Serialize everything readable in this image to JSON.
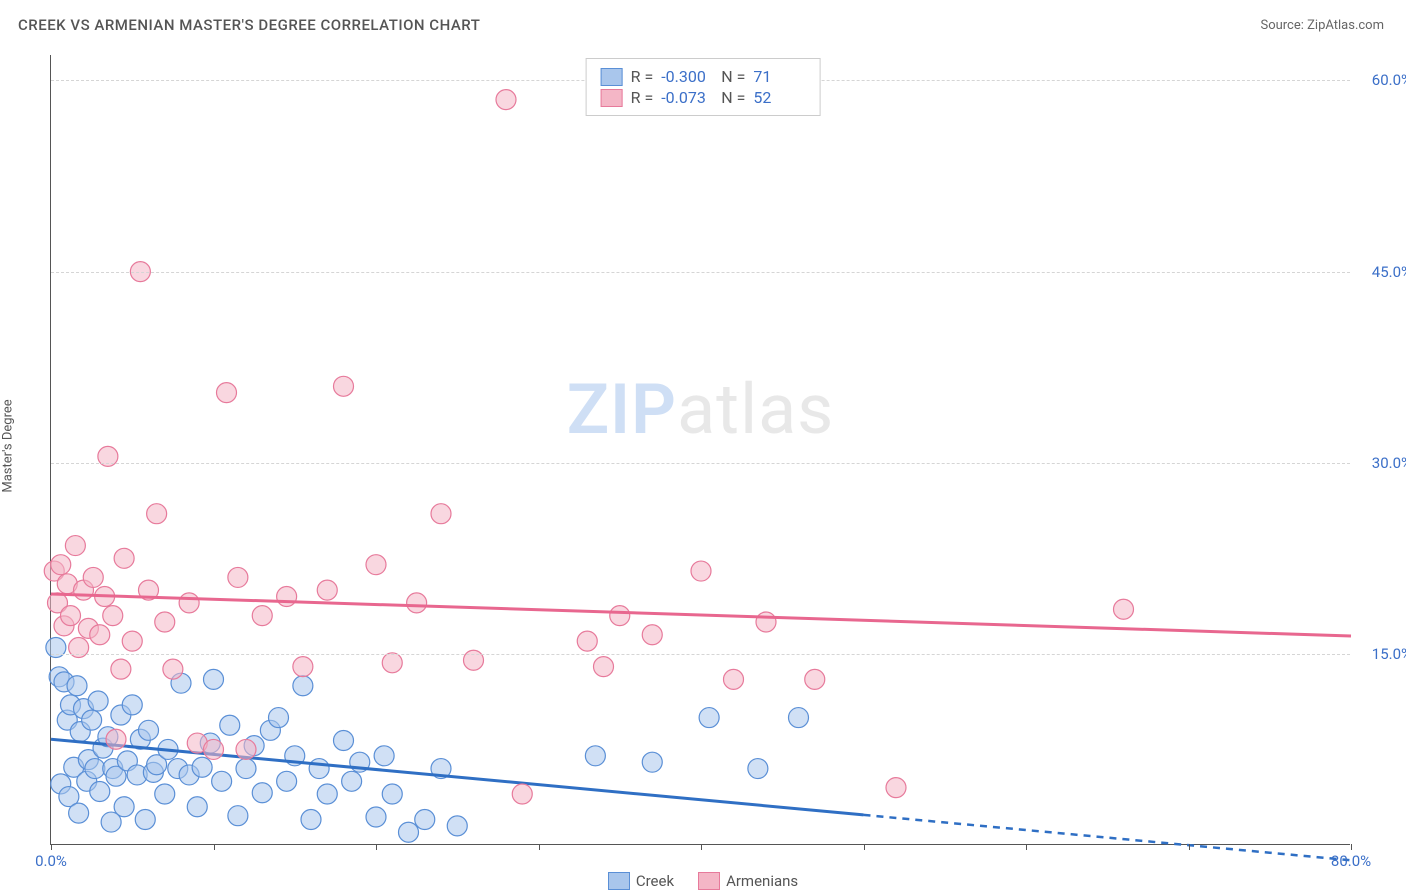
{
  "title": "CREEK VS ARMENIAN MASTER'S DEGREE CORRELATION CHART",
  "source": "Source: ZipAtlas.com",
  "watermark_zip": "ZIP",
  "watermark_rest": "atlas",
  "y_axis_label": "Master's Degree",
  "chart": {
    "type": "scatter",
    "xlim": [
      0,
      80
    ],
    "ylim": [
      0,
      62
    ],
    "x_ticks": [
      0,
      10,
      20,
      30,
      40,
      50,
      60,
      70,
      80
    ],
    "x_tick_labels": {
      "0": "0.0%",
      "80": "80.0%"
    },
    "y_grid": [
      15,
      30,
      45,
      60
    ],
    "y_tick_labels": {
      "15": "15.0%",
      "30": "30.0%",
      "45": "45.0%",
      "60": "60.0%"
    },
    "background_color": "#ffffff",
    "grid_color": "#d5d5d5",
    "tick_label_color": "#3b6fc8",
    "marker_radius": 10,
    "marker_opacity": 0.55,
    "series": [
      {
        "name": "Creek",
        "color_fill": "#a9c6ec",
        "color_stroke": "#5a8fd6",
        "line_color": "#2f6fc4",
        "trend": {
          "y_at_x0": 8.3,
          "y_at_xmax": -1.2,
          "solid_until_x": 50
        },
        "R": "-0.300",
        "N": "71",
        "points": [
          [
            0.3,
            15.5
          ],
          [
            0.5,
            13.2
          ],
          [
            0.6,
            4.8
          ],
          [
            0.8,
            12.8
          ],
          [
            1.0,
            9.8
          ],
          [
            1.1,
            3.8
          ],
          [
            1.2,
            11.0
          ],
          [
            1.4,
            6.1
          ],
          [
            1.6,
            12.5
          ],
          [
            1.7,
            2.5
          ],
          [
            1.8,
            8.9
          ],
          [
            2.0,
            10.7
          ],
          [
            2.2,
            5.0
          ],
          [
            2.3,
            6.7
          ],
          [
            2.5,
            9.8
          ],
          [
            2.7,
            6.0
          ],
          [
            2.9,
            11.3
          ],
          [
            3.0,
            4.2
          ],
          [
            3.2,
            7.6
          ],
          [
            3.5,
            8.5
          ],
          [
            3.7,
            1.8
          ],
          [
            3.8,
            6.0
          ],
          [
            4.0,
            5.4
          ],
          [
            4.3,
            10.2
          ],
          [
            4.5,
            3.0
          ],
          [
            4.7,
            6.6
          ],
          [
            5.0,
            11.0
          ],
          [
            5.3,
            5.5
          ],
          [
            5.5,
            8.3
          ],
          [
            5.8,
            2.0
          ],
          [
            6.0,
            9.0
          ],
          [
            6.3,
            5.7
          ],
          [
            6.5,
            6.3
          ],
          [
            7.0,
            4.0
          ],
          [
            7.2,
            7.5
          ],
          [
            7.8,
            6.0
          ],
          [
            8.0,
            12.7
          ],
          [
            8.5,
            5.5
          ],
          [
            9.0,
            3.0
          ],
          [
            9.3,
            6.1
          ],
          [
            9.8,
            8.0
          ],
          [
            10.0,
            13.0
          ],
          [
            10.5,
            5.0
          ],
          [
            11.0,
            9.4
          ],
          [
            11.5,
            2.3
          ],
          [
            12.0,
            6.0
          ],
          [
            12.5,
            7.8
          ],
          [
            13.0,
            4.1
          ],
          [
            13.5,
            9.0
          ],
          [
            14.0,
            10.0
          ],
          [
            14.5,
            5.0
          ],
          [
            15.0,
            7.0
          ],
          [
            15.5,
            12.5
          ],
          [
            16.0,
            2.0
          ],
          [
            16.5,
            6.0
          ],
          [
            17.0,
            4.0
          ],
          [
            18.0,
            8.2
          ],
          [
            18.5,
            5.0
          ],
          [
            19.0,
            6.5
          ],
          [
            20.0,
            2.2
          ],
          [
            20.5,
            7.0
          ],
          [
            21.0,
            4.0
          ],
          [
            22.0,
            1.0
          ],
          [
            23.0,
            2.0
          ],
          [
            24.0,
            6.0
          ],
          [
            25.0,
            1.5
          ],
          [
            33.5,
            7.0
          ],
          [
            37.0,
            6.5
          ],
          [
            40.5,
            10.0
          ],
          [
            43.5,
            6.0
          ],
          [
            46.0,
            10.0
          ]
        ]
      },
      {
        "name": "Armenians",
        "color_fill": "#f4b6c6",
        "color_stroke": "#e77a9b",
        "line_color": "#e8678f",
        "trend": {
          "y_at_x0": 19.7,
          "y_at_xmax": 16.4,
          "solid_until_x": 80
        },
        "R": "-0.073",
        "N": "52",
        "points": [
          [
            0.2,
            21.5
          ],
          [
            0.4,
            19.0
          ],
          [
            0.6,
            22.0
          ],
          [
            0.8,
            17.2
          ],
          [
            1.0,
            20.5
          ],
          [
            1.2,
            18.0
          ],
          [
            1.5,
            23.5
          ],
          [
            1.7,
            15.5
          ],
          [
            2.0,
            20.0
          ],
          [
            2.3,
            17.0
          ],
          [
            2.6,
            21.0
          ],
          [
            3.0,
            16.5
          ],
          [
            3.3,
            19.5
          ],
          [
            3.5,
            30.5
          ],
          [
            3.8,
            18.0
          ],
          [
            4.0,
            8.3
          ],
          [
            4.3,
            13.8
          ],
          [
            4.5,
            22.5
          ],
          [
            5.0,
            16.0
          ],
          [
            5.5,
            45.0
          ],
          [
            6.0,
            20.0
          ],
          [
            6.5,
            26.0
          ],
          [
            7.0,
            17.5
          ],
          [
            7.5,
            13.8
          ],
          [
            8.5,
            19.0
          ],
          [
            9.0,
            8.0
          ],
          [
            10.0,
            7.5
          ],
          [
            10.8,
            35.5
          ],
          [
            11.5,
            21.0
          ],
          [
            12.0,
            7.5
          ],
          [
            13.0,
            18.0
          ],
          [
            14.5,
            19.5
          ],
          [
            15.5,
            14.0
          ],
          [
            17.0,
            20.0
          ],
          [
            18.0,
            36.0
          ],
          [
            20.0,
            22.0
          ],
          [
            21.0,
            14.3
          ],
          [
            22.5,
            19.0
          ],
          [
            24.0,
            26.0
          ],
          [
            26.0,
            14.5
          ],
          [
            28.0,
            58.5
          ],
          [
            29.0,
            4.0
          ],
          [
            33.0,
            16.0
          ],
          [
            34.0,
            14.0
          ],
          [
            35.0,
            18.0
          ],
          [
            37.0,
            16.5
          ],
          [
            40.0,
            21.5
          ],
          [
            42.0,
            13.0
          ],
          [
            44.0,
            17.5
          ],
          [
            47.0,
            13.0
          ],
          [
            52.0,
            4.5
          ],
          [
            66.0,
            18.5
          ]
        ]
      }
    ]
  },
  "legend_top_label_R": "R =",
  "legend_top_label_N": "N ="
}
